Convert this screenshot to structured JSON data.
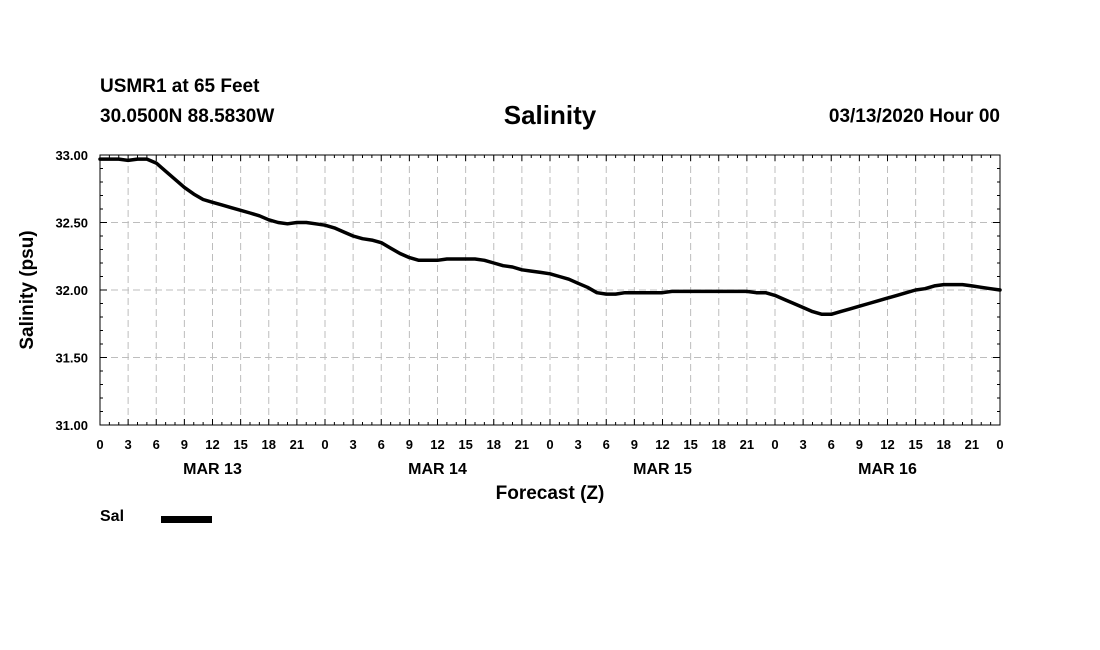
{
  "header": {
    "station": "USMR1 at 65 Feet",
    "coords": "30.0500N 88.5830W",
    "title": "Salinity",
    "datetime": "03/13/2020 Hour 00"
  },
  "legend": {
    "label": "Sal",
    "color": "#000000"
  },
  "chart_data": {
    "type": "line",
    "title": "Salinity",
    "xlabel": "Forecast (Z)",
    "ylabel": "Salinity (psu)",
    "ylim": [
      31.0,
      33.0
    ],
    "xlim": [
      0,
      96
    ],
    "y_ticks": [
      "31.00",
      "31.50",
      "32.00",
      "32.50",
      "33.00"
    ],
    "x_tick_labels": [
      "0",
      "3",
      "6",
      "9",
      "12",
      "15",
      "18",
      "21",
      "0",
      "3",
      "6",
      "9",
      "12",
      "15",
      "18",
      "21",
      "0",
      "3",
      "6",
      "9",
      "12",
      "15",
      "18",
      "21",
      "0",
      "3",
      "6",
      "9",
      "12",
      "15",
      "18",
      "21",
      "0"
    ],
    "day_labels": [
      {
        "label": "MAR 13",
        "hour": 12
      },
      {
        "label": "MAR 14",
        "hour": 36
      },
      {
        "label": "MAR 15",
        "hour": 60
      },
      {
        "label": "MAR 16",
        "hour": 84
      }
    ],
    "grid": true,
    "series": [
      {
        "name": "Sal",
        "color": "#000000",
        "x": [
          0,
          1,
          2,
          3,
          4,
          5,
          6,
          7,
          8,
          9,
          10,
          11,
          12,
          13,
          14,
          15,
          16,
          17,
          18,
          19,
          20,
          21,
          22,
          23,
          24,
          25,
          26,
          27,
          28,
          29,
          30,
          31,
          32,
          33,
          34,
          35,
          36,
          37,
          38,
          39,
          40,
          41,
          42,
          43,
          44,
          45,
          46,
          47,
          48,
          49,
          50,
          51,
          52,
          53,
          54,
          55,
          56,
          57,
          58,
          59,
          60,
          61,
          62,
          63,
          64,
          65,
          66,
          67,
          68,
          69,
          70,
          71,
          72,
          73,
          74,
          75,
          76,
          77,
          78,
          79,
          80,
          81,
          82,
          83,
          84,
          85,
          86,
          87,
          88,
          89,
          90,
          91,
          92,
          93,
          94,
          95,
          96
        ],
        "values": [
          32.97,
          32.97,
          32.97,
          32.96,
          32.97,
          32.97,
          32.94,
          32.88,
          32.82,
          32.76,
          32.71,
          32.67,
          32.65,
          32.63,
          32.61,
          32.59,
          32.57,
          32.55,
          32.52,
          32.5,
          32.49,
          32.5,
          32.5,
          32.49,
          32.48,
          32.46,
          32.43,
          32.4,
          32.38,
          32.37,
          32.35,
          32.31,
          32.27,
          32.24,
          32.22,
          32.22,
          32.22,
          32.23,
          32.23,
          32.23,
          32.23,
          32.22,
          32.2,
          32.18,
          32.17,
          32.15,
          32.14,
          32.13,
          32.12,
          32.1,
          32.08,
          32.05,
          32.02,
          31.98,
          31.97,
          31.97,
          31.98,
          31.98,
          31.98,
          31.98,
          31.98,
          31.99,
          31.99,
          31.99,
          31.99,
          31.99,
          31.99,
          31.99,
          31.99,
          31.99,
          31.98,
          31.98,
          31.96,
          31.93,
          31.9,
          31.87,
          31.84,
          31.82,
          31.82,
          31.84,
          31.86,
          31.88,
          31.9,
          31.92,
          31.94,
          31.96,
          31.98,
          32.0,
          32.01,
          32.03,
          32.04,
          32.04,
          32.04,
          32.03,
          32.02,
          32.01,
          32.0
        ]
      }
    ]
  }
}
